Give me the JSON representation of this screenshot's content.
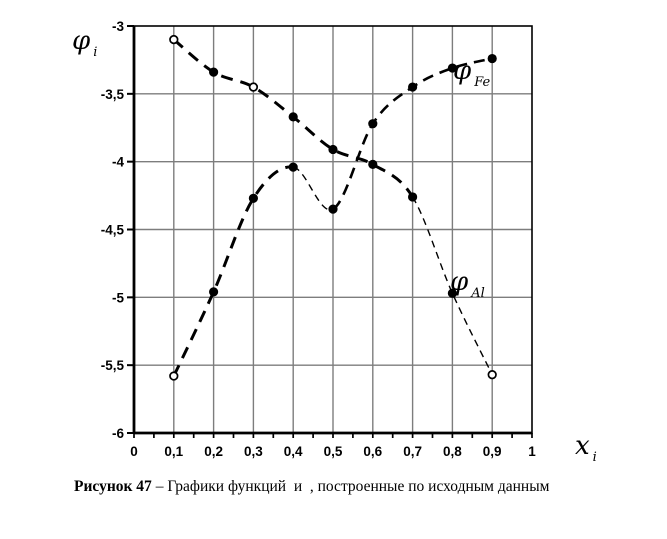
{
  "figure": {
    "caption_bold": "Рисунок 47",
    "caption_rest": " – Графики функций  и  , построенные по исходным данным"
  },
  "chart": {
    "y_axis_label": {
      "main": "φ",
      "sub": "i"
    },
    "x_axis_label": {
      "main": "x",
      "sub": "i"
    },
    "series_labels": {
      "fe": {
        "main": "φ",
        "sub": "Fe"
      },
      "al": {
        "main": "φ",
        "sub": "Al"
      }
    }
  },
  "chart_data": {
    "type": "line",
    "title": "",
    "xlabel": "x_i",
    "ylabel": "φ_i",
    "xlim": [
      0,
      1
    ],
    "ylim": [
      -6,
      -3
    ],
    "grid": true,
    "legend_position": "inline-annotations",
    "x": [
      0.1,
      0.2,
      0.3,
      0.4,
      0.5,
      0.6,
      0.7,
      0.8,
      0.9
    ],
    "x_ticks": [
      "0",
      "0,1",
      "0,2",
      "0,3",
      "0,4",
      "0,5",
      "0,6",
      "0,7",
      "0,8",
      "0,9",
      "1"
    ],
    "y_ticks": [
      "-3",
      "-3,5",
      "-4",
      "-4,5",
      "-5",
      "-5,5",
      "-6"
    ],
    "series": [
      {
        "name": "phi_Al",
        "style": "dashed",
        "values": [
          -3.1,
          -3.34,
          -3.45,
          -3.67,
          -3.91,
          -4.02,
          -4.26,
          -4.97,
          -5.57
        ],
        "markers": [
          "open",
          "filled",
          "open",
          "filled",
          "filled",
          "filled",
          "filled",
          "filled",
          "open"
        ],
        "segments": [
          {
            "from": 0,
            "to": 6,
            "width": 3
          },
          {
            "from": 6,
            "to": 8,
            "width": 1.4
          }
        ]
      },
      {
        "name": "phi_Fe",
        "style": "dashed",
        "values": [
          -5.58,
          -4.96,
          -4.27,
          -4.04,
          -4.35,
          -3.72,
          -3.45,
          -3.31,
          -3.24
        ],
        "markers": [
          "open",
          "filled",
          "filled",
          "filled",
          "filled",
          "filled",
          "filled",
          "filled",
          "filled"
        ],
        "segments": [
          {
            "from": 0,
            "to": 3,
            "width": 3
          },
          {
            "from": 3,
            "to": 4,
            "width": 1.4
          },
          {
            "from": 4,
            "to": 8,
            "width": 2.6
          }
        ]
      }
    ],
    "colors": {
      "line": "#000000",
      "grid": "#7d7d7d",
      "background": "#ffffff",
      "tick_text": "#000000"
    }
  }
}
